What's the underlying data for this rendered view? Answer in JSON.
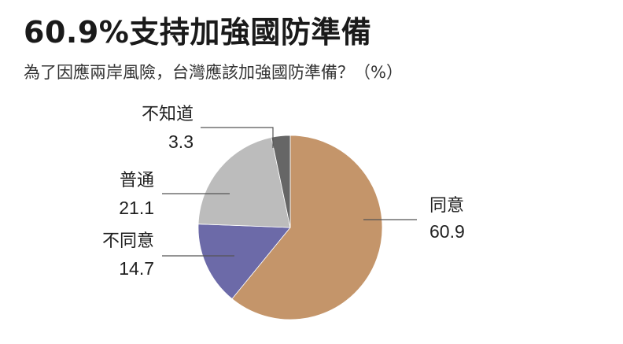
{
  "header": {
    "title": "60.9%支持加強國防準備",
    "subtitle": "為了因應兩岸風險，台灣應該加強國防準備？（%）"
  },
  "chart_data": {
    "type": "pie",
    "title": "60.9%支持加強國防準備",
    "subtitle": "為了因應兩岸風險，台灣應該加強國防準備？（%）",
    "slices": [
      {
        "label": "同意",
        "value": "60.9",
        "color": "#c4956a"
      },
      {
        "label": "不同意",
        "value": "14.7",
        "color": "#6c6aa8"
      },
      {
        "label": "普通",
        "value": "21.1",
        "color": "#bcbcbc"
      },
      {
        "label": "不知道",
        "value": "3.3",
        "color": "#666666"
      }
    ]
  }
}
